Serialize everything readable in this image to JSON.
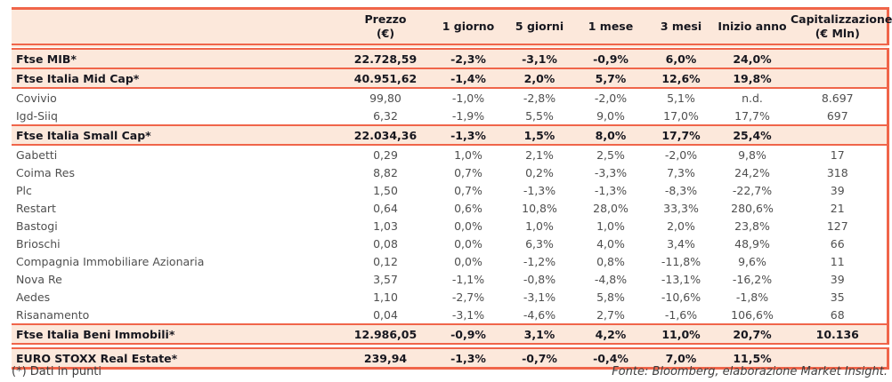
{
  "table": {
    "columns": {
      "name": {
        "label": ""
      },
      "prezzo": {
        "label": "Prezzo",
        "sub": "(€)"
      },
      "d1": {
        "label": "1 giorno"
      },
      "d5": {
        "label": "5 giorni"
      },
      "m1": {
        "label": "1 mese"
      },
      "m3": {
        "label": "3 mesi"
      },
      "ytd": {
        "label": "Inizio anno"
      },
      "cap": {
        "label": "Capitalizzazione",
        "sub": "(€ Mln)"
      }
    },
    "rows": [
      {
        "name": "Ftse MIB*",
        "kind": "index",
        "prezzo": "22.728,59",
        "d1": "-2,3%",
        "d5": "-3,1%",
        "m1": "-0,9%",
        "m3": "6,0%",
        "ytd": "24,0%",
        "cap": ""
      },
      {
        "name": "Ftse Italia Mid Cap*",
        "kind": "index",
        "prezzo": "40.951,62",
        "d1": "-1,4%",
        "d5": "2,0%",
        "m1": "5,7%",
        "m3": "12,6%",
        "ytd": "19,8%",
        "cap": ""
      },
      {
        "name": "Covivio",
        "kind": "stock",
        "prezzo": "99,80",
        "d1": "-1,0%",
        "d5": "-2,8%",
        "m1": "-2,0%",
        "m3": "5,1%",
        "ytd": "n.d.",
        "cap": "8.697"
      },
      {
        "name": "Igd-Siiq",
        "kind": "stock",
        "prezzo": "6,32",
        "d1": "-1,9%",
        "d5": "5,5%",
        "m1": "9,0%",
        "m3": "17,0%",
        "ytd": "17,7%",
        "cap": "697"
      },
      {
        "name": "Ftse Italia Small Cap*",
        "kind": "index",
        "prezzo": "22.034,36",
        "d1": "-1,3%",
        "d5": "1,5%",
        "m1": "8,0%",
        "m3": "17,7%",
        "ytd": "25,4%",
        "cap": ""
      },
      {
        "name": "Gabetti",
        "kind": "stock",
        "prezzo": "0,29",
        "d1": "1,0%",
        "d5": "2,1%",
        "m1": "2,5%",
        "m3": "-2,0%",
        "ytd": "9,8%",
        "cap": "17"
      },
      {
        "name": "Coima Res",
        "kind": "stock",
        "prezzo": "8,82",
        "d1": "0,7%",
        "d5": "0,2%",
        "m1": "-3,3%",
        "m3": "7,3%",
        "ytd": "24,2%",
        "cap": "318"
      },
      {
        "name": "Plc",
        "kind": "stock",
        "prezzo": "1,50",
        "d1": "0,7%",
        "d5": "-1,3%",
        "m1": "-1,3%",
        "m3": "-8,3%",
        "ytd": "-22,7%",
        "cap": "39"
      },
      {
        "name": "Restart",
        "kind": "stock",
        "prezzo": "0,64",
        "d1": "0,6%",
        "d5": "10,8%",
        "m1": "28,0%",
        "m3": "33,3%",
        "ytd": "280,6%",
        "cap": "21"
      },
      {
        "name": "Bastogi",
        "kind": "stock",
        "prezzo": "1,03",
        "d1": "0,0%",
        "d5": "1,0%",
        "m1": "1,0%",
        "m3": "2,0%",
        "ytd": "23,8%",
        "cap": "127"
      },
      {
        "name": "Brioschi",
        "kind": "stock",
        "prezzo": "0,08",
        "d1": "0,0%",
        "d5": "6,3%",
        "m1": "4,0%",
        "m3": "3,4%",
        "ytd": "48,9%",
        "cap": "66"
      },
      {
        "name": "Compagnia Immobiliare Azionaria",
        "kind": "stock",
        "prezzo": "0,12",
        "d1": "0,0%",
        "d5": "-1,2%",
        "m1": "0,8%",
        "m3": "-11,8%",
        "ytd": "9,6%",
        "cap": "11"
      },
      {
        "name": "Nova Re",
        "kind": "stock",
        "prezzo": "3,57",
        "d1": "-1,1%",
        "d5": "-0,8%",
        "m1": "-4,8%",
        "m3": "-13,1%",
        "ytd": "-16,2%",
        "cap": "39"
      },
      {
        "name": "Aedes",
        "kind": "stock",
        "prezzo": "1,10",
        "d1": "-2,7%",
        "d5": "-3,1%",
        "m1": "5,8%",
        "m3": "-10,6%",
        "ytd": "-1,8%",
        "cap": "35"
      },
      {
        "name": "Risanamento",
        "kind": "stock",
        "prezzo": "0,04",
        "d1": "-3,1%",
        "d5": "-4,6%",
        "m1": "2,7%",
        "m3": "-1,6%",
        "ytd": "106,6%",
        "cap": "68"
      },
      {
        "name": "Ftse Italia Beni Immobili*",
        "kind": "index",
        "prezzo": "12.986,05",
        "d1": "-0,9%",
        "d5": "3,1%",
        "m1": "4,2%",
        "m3": "11,0%",
        "ytd": "20,7%",
        "cap": "10.136"
      },
      {
        "name": "EURO STOXX Real Estate*",
        "kind": "index",
        "double_before": true,
        "prezzo": "239,94",
        "d1": "-1,3%",
        "d5": "-0,7%",
        "m1": "-0,4%",
        "m3": "7,0%",
        "ytd": "11,5%",
        "cap": ""
      }
    ]
  },
  "footer": {
    "note": "(*) Dati in punti",
    "source": "Fonte: Bloomberg, elaborazione Market Insight."
  },
  "colors": {
    "accent": "#f0654a",
    "row_highlight": "#fce8db",
    "text_dark": "#17171f",
    "text_gray": "#4f4f4f"
  }
}
